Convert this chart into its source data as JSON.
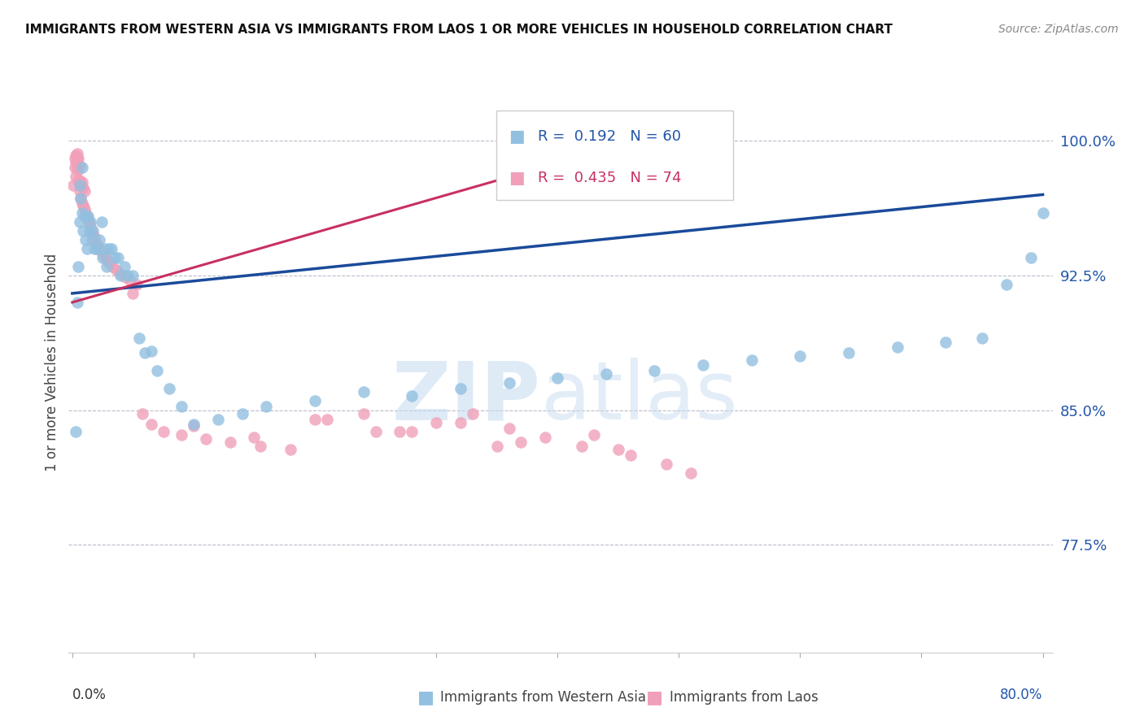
{
  "title": "IMMIGRANTS FROM WESTERN ASIA VS IMMIGRANTS FROM LAOS 1 OR MORE VEHICLES IN HOUSEHOLD CORRELATION CHART",
  "source": "Source: ZipAtlas.com",
  "ylabel": "1 or more Vehicles in Household",
  "ytick_labels": [
    "100.0%",
    "92.5%",
    "85.0%",
    "77.5%"
  ],
  "ytick_values": [
    1.0,
    0.925,
    0.85,
    0.775
  ],
  "ymin": 0.715,
  "ymax": 1.038,
  "xmin": -0.003,
  "xmax": 0.808,
  "R_blue": 0.192,
  "N_blue": 60,
  "R_pink": 0.435,
  "N_pink": 74,
  "legend_label_blue": "Immigrants from Western Asia",
  "legend_label_pink": "Immigrants from Laos",
  "blue_color": "#92C0E0",
  "pink_color": "#F0A0B8",
  "line_blue": "#1A4A9A",
  "line_pink": "#C83060",
  "blue_scatter_x": [
    0.003,
    0.004,
    0.005,
    0.006,
    0.006,
    0.007,
    0.008,
    0.008,
    0.009,
    0.01,
    0.011,
    0.012,
    0.013,
    0.014,
    0.015,
    0.016,
    0.017,
    0.018,
    0.02,
    0.022,
    0.024,
    0.025,
    0.027,
    0.028,
    0.03,
    0.032,
    0.035,
    0.038,
    0.04,
    0.043,
    0.046,
    0.05,
    0.055,
    0.06,
    0.065,
    0.07,
    0.08,
    0.09,
    0.1,
    0.12,
    0.14,
    0.16,
    0.2,
    0.24,
    0.28,
    0.32,
    0.36,
    0.4,
    0.44,
    0.48,
    0.52,
    0.56,
    0.6,
    0.64,
    0.68,
    0.72,
    0.75,
    0.77,
    0.79,
    0.8
  ],
  "blue_scatter_y": [
    0.838,
    0.91,
    0.93,
    0.955,
    0.975,
    0.968,
    0.96,
    0.985,
    0.95,
    0.958,
    0.945,
    0.94,
    0.958,
    0.95,
    0.955,
    0.945,
    0.95,
    0.94,
    0.94,
    0.945,
    0.955,
    0.935,
    0.94,
    0.93,
    0.94,
    0.94,
    0.935,
    0.935,
    0.925,
    0.93,
    0.925,
    0.925,
    0.89,
    0.882,
    0.883,
    0.872,
    0.862,
    0.852,
    0.842,
    0.845,
    0.848,
    0.852,
    0.855,
    0.86,
    0.858,
    0.862,
    0.865,
    0.868,
    0.87,
    0.872,
    0.875,
    0.878,
    0.88,
    0.882,
    0.885,
    0.888,
    0.89,
    0.92,
    0.935,
    0.96
  ],
  "pink_scatter_x": [
    0.001,
    0.002,
    0.002,
    0.003,
    0.003,
    0.003,
    0.004,
    0.004,
    0.004,
    0.005,
    0.005,
    0.005,
    0.006,
    0.006,
    0.006,
    0.007,
    0.007,
    0.008,
    0.008,
    0.009,
    0.009,
    0.01,
    0.01,
    0.011,
    0.012,
    0.013,
    0.014,
    0.015,
    0.016,
    0.017,
    0.018,
    0.019,
    0.02,
    0.022,
    0.024,
    0.026,
    0.028,
    0.03,
    0.033,
    0.036,
    0.04,
    0.044,
    0.048,
    0.053,
    0.058,
    0.065,
    0.075,
    0.09,
    0.11,
    0.13,
    0.155,
    0.18,
    0.21,
    0.24,
    0.27,
    0.3,
    0.33,
    0.36,
    0.39,
    0.42,
    0.45,
    0.43,
    0.46,
    0.49,
    0.51,
    0.37,
    0.2,
    0.25,
    0.15,
    0.35,
    0.32,
    0.28,
    0.1,
    0.05
  ],
  "pink_scatter_y": [
    0.975,
    0.985,
    0.99,
    0.98,
    0.988,
    0.992,
    0.985,
    0.99,
    0.993,
    0.978,
    0.984,
    0.99,
    0.972,
    0.978,
    0.986,
    0.968,
    0.976,
    0.965,
    0.977,
    0.964,
    0.974,
    0.962,
    0.972,
    0.96,
    0.958,
    0.956,
    0.954,
    0.952,
    0.95,
    0.948,
    0.946,
    0.944,
    0.942,
    0.94,
    0.938,
    0.936,
    0.934,
    0.932,
    0.93,
    0.928,
    0.926,
    0.924,
    0.922,
    0.92,
    0.848,
    0.842,
    0.838,
    0.836,
    0.834,
    0.832,
    0.83,
    0.828,
    0.845,
    0.848,
    0.838,
    0.843,
    0.848,
    0.84,
    0.835,
    0.83,
    0.828,
    0.836,
    0.825,
    0.82,
    0.815,
    0.832,
    0.845,
    0.838,
    0.835,
    0.83,
    0.843,
    0.838,
    0.841,
    0.915
  ]
}
